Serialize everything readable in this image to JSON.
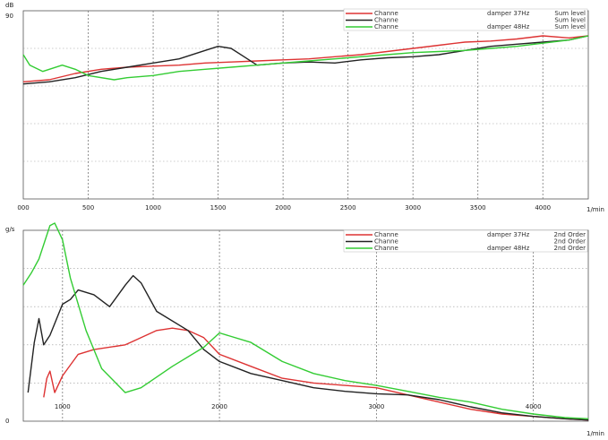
{
  "chart_data": [
    {
      "type": "line",
      "ylabel": "dB",
      "xlabel": "1/min",
      "xlim": [
        0,
        4350
      ],
      "ylim": [
        0,
        90
      ],
      "xticks": [
        0,
        500,
        1000,
        1500,
        2000,
        2500,
        3000,
        3500,
        4000
      ],
      "xtick_labels": [
        "000",
        "500",
        "1000",
        "1500",
        "2000",
        "2500",
        "3000",
        "3500",
        "4000"
      ],
      "ytick_labels": [
        "90"
      ],
      "legend_placement": "top-right",
      "legend": [
        {
          "channel": "Channe",
          "desc": "damper 37Hz",
          "type": "Sum level",
          "color": "#dd3333"
        },
        {
          "channel": "Channe",
          "desc": "",
          "type": "Sum level",
          "color": "#222222"
        },
        {
          "channel": "Channe",
          "desc": "damper 48Hz",
          "type": "Sum level",
          "color": "#33cc33"
        }
      ],
      "series": [
        {
          "color": "#dd3333",
          "x": [
            0,
            200,
            400,
            600,
            800,
            1000,
            1200,
            1400,
            1600,
            1800,
            2000,
            2200,
            2400,
            2600,
            2800,
            3000,
            3200,
            3400,
            3600,
            3800,
            4000,
            4200,
            4350
          ],
          "y": [
            56,
            57,
            60,
            62,
            63,
            63.5,
            64,
            65,
            65.5,
            66,
            66.5,
            67,
            68,
            69,
            70.5,
            72,
            73.5,
            75,
            75.5,
            76.5,
            78,
            77,
            78
          ]
        },
        {
          "color": "#222222",
          "x": [
            0,
            200,
            400,
            600,
            800,
            1000,
            1200,
            1400,
            1500,
            1600,
            1700,
            1800,
            2000,
            2200,
            2400,
            2600,
            2800,
            3000,
            3200,
            3400,
            3600,
            3800,
            4000,
            4200,
            4350
          ],
          "y": [
            55,
            56,
            58,
            61,
            63,
            65,
            67,
            71,
            73,
            72,
            68,
            64,
            65,
            65.5,
            65,
            66.5,
            67.5,
            68,
            69,
            71,
            73,
            74,
            75,
            76,
            78
          ]
        },
        {
          "color": "#33cc33",
          "x": [
            0,
            50,
            150,
            300,
            400,
            500,
            700,
            800,
            1000,
            1200,
            1400,
            1600,
            1800,
            2000,
            2200,
            2400,
            2600,
            2800,
            3000,
            3200,
            3400,
            3600,
            3800,
            4000,
            4200,
            4350
          ],
          "y": [
            69,
            64,
            61,
            64,
            62,
            59,
            57,
            58,
            59,
            61,
            62,
            63,
            64,
            65,
            66,
            67,
            68,
            69,
            70,
            70.5,
            71,
            72,
            73,
            74.5,
            76,
            78
          ]
        }
      ]
    },
    {
      "type": "line",
      "ylabel": "g/s",
      "xlabel": "1/min",
      "xlim": [
        750,
        4350
      ],
      "ylim": [
        0,
        8
      ],
      "xticks": [
        1000,
        2000,
        3000,
        4000
      ],
      "xtick_labels": [
        "1000",
        "2000",
        "3000",
        "4000"
      ],
      "ytick_labels": [
        "0"
      ],
      "legend_placement": "top-right",
      "legend": [
        {
          "channel": "Channe",
          "desc": "damper 37Hz",
          "type": "2nd Order",
          "color": "#dd3333"
        },
        {
          "channel": "Channe",
          "desc": "",
          "type": "2nd Order",
          "color": "#222222"
        },
        {
          "channel": "Channe",
          "desc": "damper 48Hz",
          "type": "2nd Order",
          "color": "#33cc33"
        }
      ],
      "series": [
        {
          "color": "#dd3333",
          "x": [
            880,
            900,
            920,
            950,
            1000,
            1100,
            1200,
            1400,
            1500,
            1600,
            1700,
            1800,
            1900,
            2000,
            2200,
            2400,
            2600,
            2800,
            3000,
            3200,
            3400,
            3600,
            3800,
            4000,
            4200,
            4350
          ],
          "y": [
            1.0,
            1.8,
            2.1,
            1.2,
            1.9,
            2.8,
            3.0,
            3.2,
            3.5,
            3.8,
            3.9,
            3.8,
            3.5,
            2.8,
            2.3,
            1.8,
            1.6,
            1.5,
            1.4,
            1.1,
            0.8,
            0.5,
            0.3,
            0.2,
            0.1,
            0.05
          ]
        },
        {
          "color": "#222222",
          "x": [
            780,
            820,
            850,
            880,
            920,
            1000,
            1050,
            1100,
            1200,
            1300,
            1400,
            1450,
            1500,
            1600,
            1800,
            1900,
            2000,
            2200,
            2400,
            2600,
            2800,
            3000,
            3200,
            3400,
            3600,
            3800,
            4000,
            4200,
            4350
          ],
          "y": [
            1.2,
            3.3,
            4.3,
            3.2,
            3.6,
            4.9,
            5.1,
            5.5,
            5.3,
            4.8,
            5.7,
            6.1,
            5.8,
            4.6,
            3.8,
            3.0,
            2.5,
            2.0,
            1.7,
            1.4,
            1.25,
            1.15,
            1.1,
            0.9,
            0.6,
            0.35,
            0.2,
            0.1,
            0.05
          ]
        },
        {
          "color": "#33cc33",
          "x": [
            750,
            800,
            850,
            920,
            950,
            1000,
            1050,
            1150,
            1250,
            1400,
            1500,
            1700,
            1900,
            2000,
            2200,
            2400,
            2600,
            2800,
            3000,
            3200,
            3400,
            3600,
            3800,
            4000,
            4200,
            4350
          ],
          "y": [
            5.7,
            6.2,
            6.8,
            8.2,
            8.3,
            7.6,
            6.0,
            3.8,
            2.2,
            1.2,
            1.4,
            2.3,
            3.1,
            3.7,
            3.3,
            2.5,
            2.0,
            1.7,
            1.5,
            1.25,
            1.0,
            0.8,
            0.5,
            0.3,
            0.15,
            0.1
          ]
        }
      ]
    }
  ]
}
